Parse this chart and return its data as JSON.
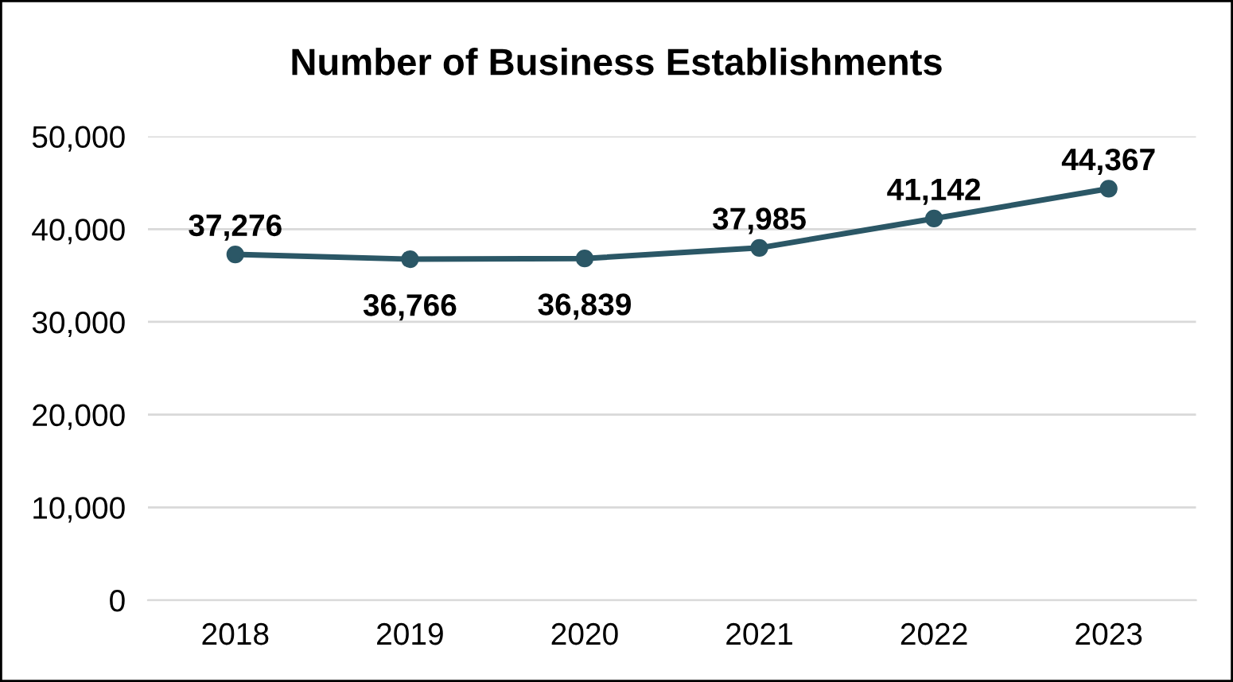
{
  "chart_data": {
    "type": "line",
    "title": "Number of Business Establishments",
    "categories": [
      "2018",
      "2019",
      "2020",
      "2021",
      "2022",
      "2023"
    ],
    "series": [
      {
        "color": "#2b5766",
        "values": [
          37276,
          36766,
          36839,
          37985,
          41142,
          44367
        ],
        "value_labels": [
          "37,276",
          "36,766",
          "36,839",
          "37,985",
          "41,142",
          "44,367"
        ]
      }
    ],
    "ylim": [
      0,
      50000
    ],
    "yticks": [
      {
        "value": 0,
        "label": "0"
      },
      {
        "value": 10000,
        "label": "10,000"
      },
      {
        "value": 20000,
        "label": "20,000"
      },
      {
        "value": 30000,
        "label": "30,000"
      },
      {
        "value": 40000,
        "label": "40,000"
      },
      {
        "value": 50000,
        "label": "50,000"
      }
    ],
    "grid": "y",
    "marker": "circle",
    "line_style": "solid",
    "legend": false
  }
}
